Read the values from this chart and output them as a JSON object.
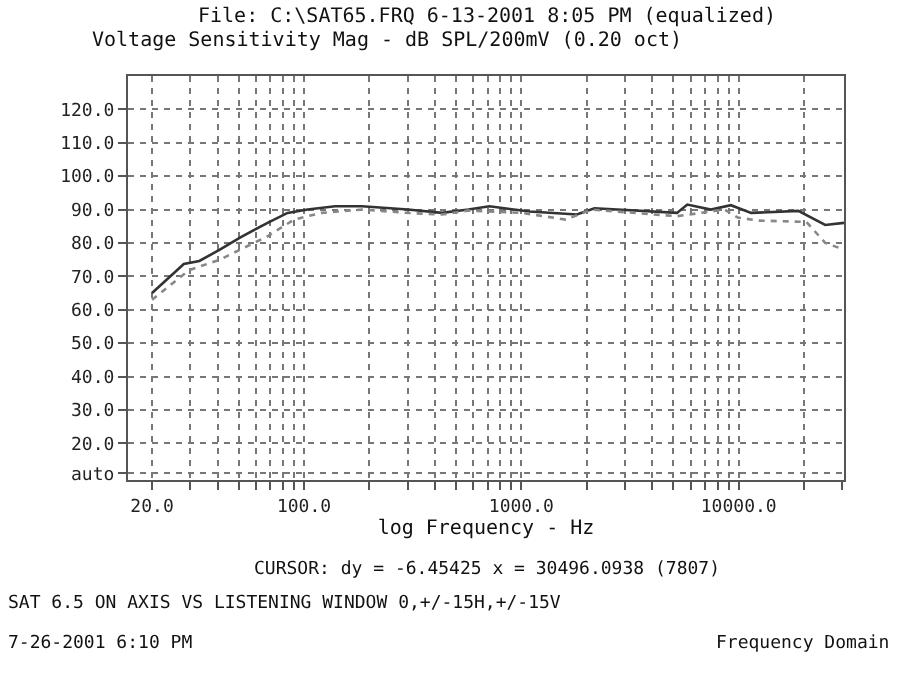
{
  "chart_data": {
    "type": "line",
    "title": "File: C:\\SAT65.FRQ 6-13-2001 8:05 PM (equalized)",
    "subtitle": "Voltage Sensitivity Mag - dB SPL/200mV (0.20 oct)",
    "xlabel": "log Frequency - Hz",
    "log": "x",
    "xlim": [
      15.5,
      30500
    ],
    "ylim": [
      9,
      130
    ],
    "xticks": [
      {
        "value": 20,
        "label": "20.0"
      },
      {
        "value": 30,
        "label": null
      },
      {
        "value": 40,
        "label": null
      },
      {
        "value": 50,
        "label": null
      },
      {
        "value": 60,
        "label": null
      },
      {
        "value": 70,
        "label": null
      },
      {
        "value": 80,
        "label": null
      },
      {
        "value": 90,
        "label": null
      },
      {
        "value": 100,
        "label": "100.0"
      },
      {
        "value": 200,
        "label": null
      },
      {
        "value": 300,
        "label": null
      },
      {
        "value": 400,
        "label": null
      },
      {
        "value": 500,
        "label": null
      },
      {
        "value": 600,
        "label": null
      },
      {
        "value": 700,
        "label": null
      },
      {
        "value": 800,
        "label": null
      },
      {
        "value": 900,
        "label": null
      },
      {
        "value": 1000,
        "label": "1000.0"
      },
      {
        "value": 2000,
        "label": null
      },
      {
        "value": 3000,
        "label": null
      },
      {
        "value": 4000,
        "label": null
      },
      {
        "value": 5000,
        "label": null
      },
      {
        "value": 6000,
        "label": null
      },
      {
        "value": 7000,
        "label": null
      },
      {
        "value": 8000,
        "label": null
      },
      {
        "value": 9000,
        "label": null
      },
      {
        "value": 10000,
        "label": "10000.0"
      },
      {
        "value": 20000,
        "label": null
      },
      {
        "value": 30000,
        "label": null
      }
    ],
    "yticks": [
      {
        "value": 11,
        "label": "auto"
      },
      {
        "value": 20,
        "label": "20.0"
      },
      {
        "value": 30,
        "label": "30.0"
      },
      {
        "value": 40,
        "label": "40.0"
      },
      {
        "value": 50,
        "label": "50.0"
      },
      {
        "value": 60,
        "label": "60.0"
      },
      {
        "value": 70,
        "label": "70.0"
      },
      {
        "value": 80,
        "label": "80.0"
      },
      {
        "value": 90,
        "label": "90.0"
      },
      {
        "value": 100,
        "label": "100.0"
      },
      {
        "value": 110,
        "label": "110.0"
      },
      {
        "value": 120,
        "label": "120.0"
      }
    ],
    "grid": true,
    "series": [
      {
        "color": "#333333",
        "line_style": "solid",
        "x": [
          20,
          28,
          33,
          41,
          51,
          68,
          84,
          104,
          139,
          185,
          300,
          431,
          570,
          713,
          1090,
          1800,
          2170,
          5200,
          5800,
          7450,
          9200,
          11400,
          18800,
          25000,
          30500
        ],
        "values": [
          65,
          73.7,
          74.6,
          78,
          81.7,
          86,
          89,
          90,
          91,
          91,
          90,
          89,
          90,
          91,
          89.4,
          88.5,
          90.4,
          89,
          91.5,
          90,
          91.3,
          89,
          89.6,
          85.4,
          86
        ]
      },
      {
        "color": "#888888",
        "line_style": "dotted",
        "x": [
          20,
          29.5,
          41,
          68,
          90,
          120,
          185,
          300,
          431,
          570,
          1000,
          1600,
          2100,
          5200,
          8600,
          9900,
          12300,
          20500,
          25000,
          30500
        ],
        "values": [
          63,
          71.8,
          75,
          82,
          87,
          89,
          90,
          89,
          88.5,
          89.7,
          89,
          87,
          90,
          88,
          90,
          87.6,
          86.7,
          86.3,
          80,
          78
        ]
      }
    ],
    "annotations": [
      "CURSOR: dy = -6.45425 x = 30496.0938 (7807)",
      "SAT 6.5 ON AXIS VS LISTENING WINDOW 0,+/-15H,+/-15V",
      "7-26-2001 6:10 PM",
      "Frequency Domain"
    ]
  }
}
